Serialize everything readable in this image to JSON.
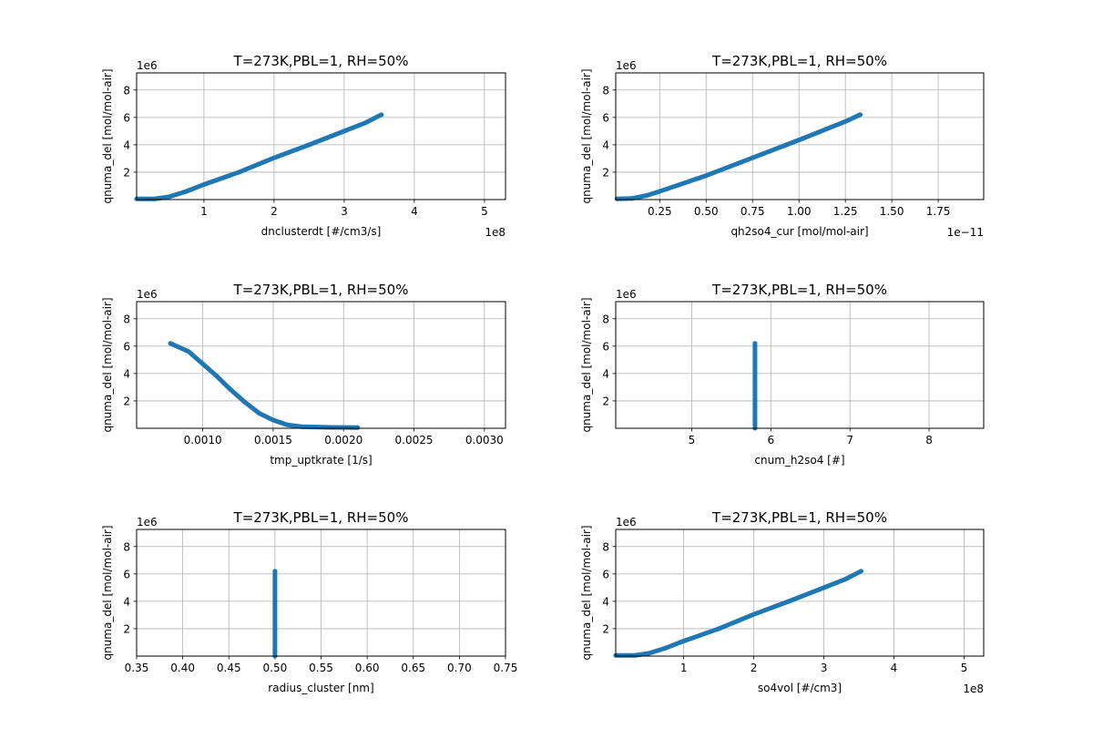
{
  "chart_data": [
    {
      "type": "scatter",
      "title": "T=273K,PBL=1, RH=50%",
      "xlabel": "dnclusterdt [#/cm3/s]",
      "ylabel": "qnuma_del [mol/mol-air]",
      "x_offset": "1e8",
      "y_offset": "1e6",
      "xlim": [
        0.04,
        5.3
      ],
      "ylim": [
        0,
        9.25
      ],
      "xticks": [
        1,
        2,
        3,
        4,
        5
      ],
      "xtick_labels": [
        "1",
        "2",
        "3",
        "4",
        "5"
      ],
      "yticks": [
        2,
        4,
        6,
        8
      ],
      "ytick_labels": [
        "2",
        "4",
        "6",
        "8"
      ],
      "grid": true,
      "x": [
        0.04,
        0.3,
        0.5,
        0.75,
        1,
        1.5,
        2,
        2.5,
        3,
        3.3,
        3.53
      ],
      "y": [
        0.05,
        0.05,
        0.2,
        0.6,
        1.1,
        2.0,
        3.05,
        4.0,
        5.0,
        5.6,
        6.2
      ]
    },
    {
      "type": "scatter",
      "title": "T=273K,PBL=1, RH=50%",
      "xlabel": "qh2so4_cur [mol/mol-air]",
      "ylabel": "qnuma_del [mol/mol-air]",
      "x_offset": "1e−11",
      "y_offset": "1e6",
      "xlim": [
        0.013,
        1.995
      ],
      "ylim": [
        0,
        9.25
      ],
      "xticks": [
        0.25,
        0.5,
        0.75,
        1.0,
        1.25,
        1.5,
        1.75
      ],
      "xtick_labels": [
        "0.25",
        "0.50",
        "0.75",
        "1.00",
        "1.25",
        "1.50",
        "1.75"
      ],
      "yticks": [
        2,
        4,
        6,
        8
      ],
      "ytick_labels": [
        "2",
        "4",
        "6",
        "8"
      ],
      "grid": true,
      "x": [
        0.02,
        0.1,
        0.18,
        0.25,
        0.5,
        0.75,
        1.0,
        1.25,
        1.33
      ],
      "y": [
        0.05,
        0.08,
        0.3,
        0.6,
        1.75,
        3.05,
        4.35,
        5.7,
        6.2
      ]
    },
    {
      "type": "scatter",
      "title": "T=273K,PBL=1, RH=50%",
      "xlabel": "tmp_uptkrate [1/s]",
      "ylabel": "qnuma_del [mol/mol-air]",
      "x_offset": "",
      "y_offset": "1e6",
      "xlim": [
        0.00053,
        0.00315
      ],
      "ylim": [
        0,
        9.25
      ],
      "xticks": [
        0.001,
        0.0015,
        0.002,
        0.0025,
        0.003
      ],
      "xtick_labels": [
        "0.0010",
        "0.0015",
        "0.0020",
        "0.0025",
        "0.0030"
      ],
      "yticks": [
        2,
        4,
        6,
        8
      ],
      "ytick_labels": [
        "2",
        "4",
        "6",
        "8"
      ],
      "grid": true,
      "x": [
        0.00077,
        0.0009,
        0.001,
        0.0011,
        0.0012,
        0.0013,
        0.0014,
        0.0015,
        0.0016,
        0.0017,
        0.0019,
        0.0021
      ],
      "y": [
        6.2,
        5.6,
        4.7,
        3.8,
        2.8,
        1.9,
        1.1,
        0.6,
        0.25,
        0.12,
        0.07,
        0.05
      ]
    },
    {
      "type": "scatter",
      "title": "T=273K,PBL=1, RH=50%",
      "xlabel": "cnum_h2so4 [#]",
      "ylabel": "qnuma_del [mol/mol-air]",
      "x_offset": "",
      "y_offset": "1e6",
      "xlim": [
        4.04,
        8.69
      ],
      "ylim": [
        0,
        9.25
      ],
      "xticks": [
        5,
        6,
        7,
        8
      ],
      "xtick_labels": [
        "5",
        "6",
        "7",
        "8"
      ],
      "yticks": [
        2,
        4,
        6,
        8
      ],
      "ytick_labels": [
        "2",
        "4",
        "6",
        "8"
      ],
      "grid": true,
      "x": [
        5.8,
        5.8,
        5.8,
        5.8
      ],
      "y": [
        0.0,
        2.0,
        4.0,
        6.2
      ]
    },
    {
      "type": "scatter",
      "title": "T=273K,PBL=1, RH=50%",
      "xlabel": "radius_cluster [nm]",
      "ylabel": "qnuma_del [mol/mol-air]",
      "x_offset": "",
      "y_offset": "1e6",
      "xlim": [
        0.35,
        0.75
      ],
      "ylim": [
        0,
        9.25
      ],
      "xticks": [
        0.35,
        0.4,
        0.45,
        0.5,
        0.55,
        0.6,
        0.65,
        0.7,
        0.75
      ],
      "xtick_labels": [
        "0.35",
        "0.40",
        "0.45",
        "0.50",
        "0.55",
        "0.60",
        "0.65",
        "0.70",
        "0.75"
      ],
      "yticks": [
        2,
        4,
        6,
        8
      ],
      "ytick_labels": [
        "2",
        "4",
        "6",
        "8"
      ],
      "grid": true,
      "x": [
        0.5,
        0.5,
        0.5,
        0.5
      ],
      "y": [
        0.0,
        2.0,
        4.0,
        6.2
      ]
    },
    {
      "type": "scatter",
      "title": "T=273K,PBL=1, RH=50%",
      "xlabel": "so4vol [#/cm3]",
      "ylabel": "qnuma_del [mol/mol-air]",
      "x_offset": "1e8",
      "y_offset": "1e6",
      "xlim": [
        0.03,
        5.28
      ],
      "ylim": [
        0,
        9.25
      ],
      "xticks": [
        1,
        2,
        3,
        4,
        5
      ],
      "xtick_labels": [
        "1",
        "2",
        "3",
        "4",
        "5"
      ],
      "yticks": [
        2,
        4,
        6,
        8
      ],
      "ytick_labels": [
        "2",
        "4",
        "6",
        "8"
      ],
      "grid": true,
      "x": [
        0.03,
        0.3,
        0.5,
        0.75,
        1,
        1.5,
        2,
        2.5,
        3,
        3.3,
        3.53
      ],
      "y": [
        0.05,
        0.05,
        0.2,
        0.6,
        1.1,
        2.0,
        3.05,
        4.0,
        5.0,
        5.6,
        6.2
      ]
    }
  ],
  "colors": {
    "series": "#1f77b4",
    "grid": "#b0b0b0"
  }
}
